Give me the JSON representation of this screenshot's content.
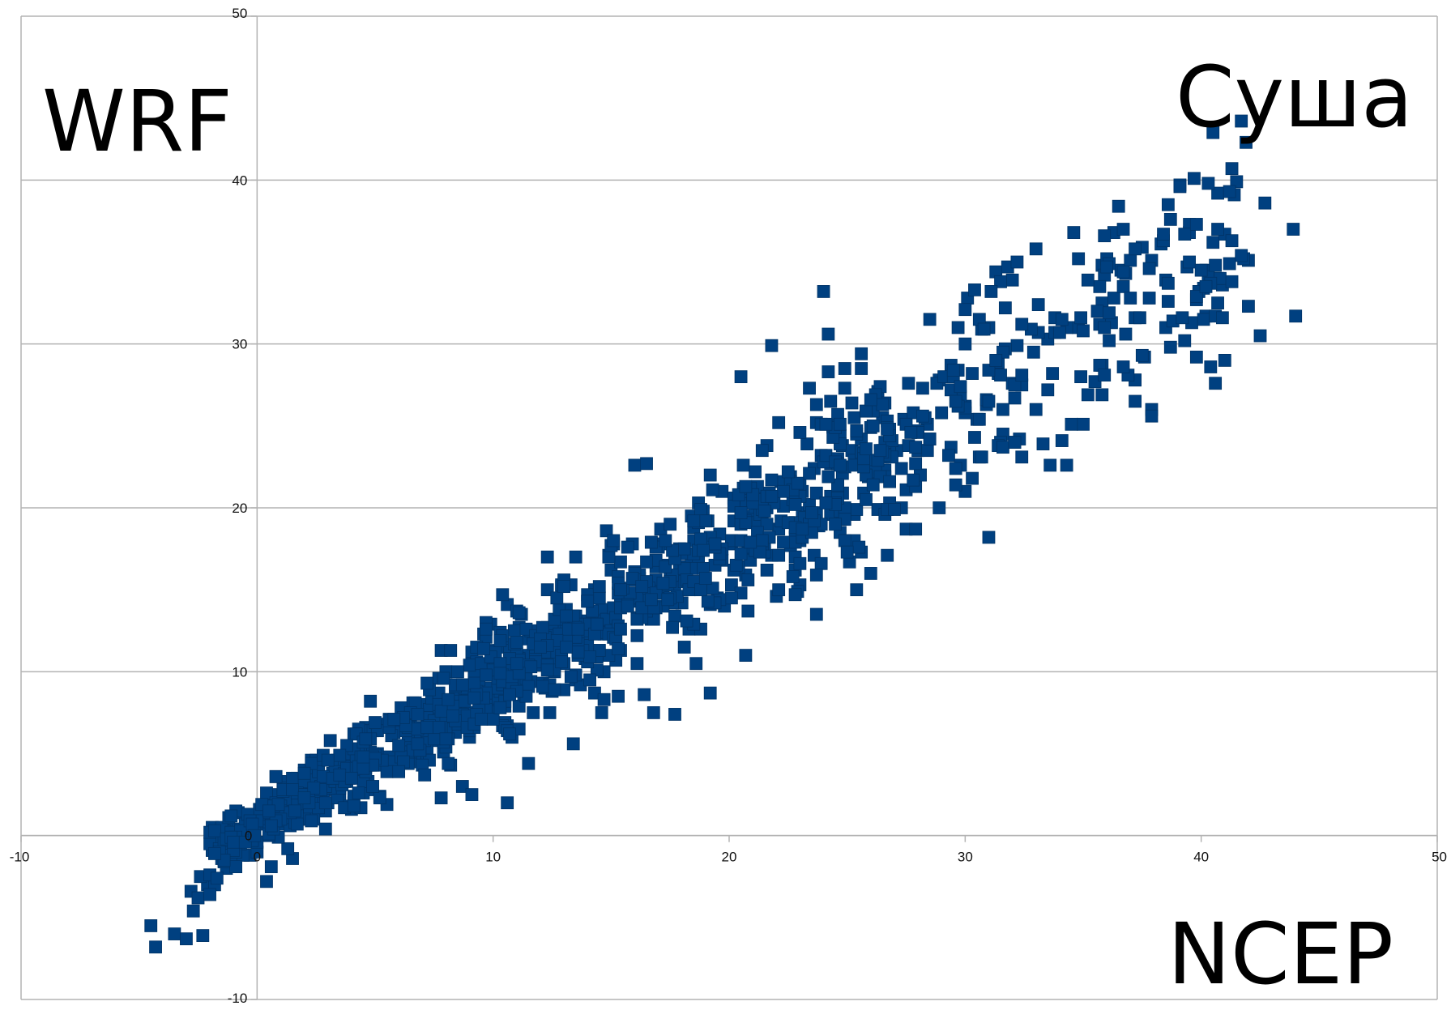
{
  "chart_data": {
    "type": "scatter",
    "title": "",
    "xlabel": "NCEP",
    "ylabel": "WRF",
    "annotation": "Суша",
    "xlim": [
      -10,
      50
    ],
    "ylim": [
      -10,
      50
    ],
    "xticks": [
      -10,
      0,
      10,
      20,
      30,
      40,
      50
    ],
    "yticks": [
      -10,
      0,
      10,
      20,
      30,
      40,
      50
    ],
    "grid": "horizontal",
    "legend": "none",
    "marker_color": "#004080",
    "marker": "square",
    "points_anchor": [
      [
        -4.5,
        -5.5
      ],
      [
        -4.3,
        -6.8
      ],
      [
        -3.5,
        -6.0
      ],
      [
        -3.0,
        -6.3
      ],
      [
        -2.8,
        -3.4
      ],
      [
        -2.5,
        -3.8
      ],
      [
        -2.7,
        -4.6
      ],
      [
        -2.3,
        -6.1
      ],
      [
        -2.1,
        -3.0
      ],
      [
        -2.4,
        -2.5
      ],
      [
        -1.8,
        -3.0
      ],
      [
        -1.5,
        -1.4
      ],
      [
        -1.3,
        -2.0
      ],
      [
        -1.0,
        -1.2
      ],
      [
        -0.8,
        -0.5
      ],
      [
        -1.2,
        0.4
      ],
      [
        -0.6,
        0.0
      ],
      [
        0.4,
        -2.8
      ],
      [
        1.5,
        -1.4
      ],
      [
        1.0,
        0.8
      ],
      [
        0.8,
        3.6
      ],
      [
        1.4,
        2.5
      ],
      [
        3.0,
        2.0
      ],
      [
        3.1,
        5.8
      ],
      [
        3.8,
        4.5
      ],
      [
        4.8,
        8.2
      ],
      [
        6.5,
        7.6
      ],
      [
        7.5,
        6.8
      ],
      [
        7.8,
        11.3
      ],
      [
        7.8,
        2.3
      ],
      [
        8.7,
        3.0
      ],
      [
        9.1,
        2.5
      ],
      [
        10.6,
        2.0
      ],
      [
        11.5,
        4.4
      ],
      [
        10.6,
        6.7
      ],
      [
        10.6,
        14.1
      ],
      [
        11.0,
        13.7
      ],
      [
        12.3,
        17.0
      ],
      [
        13.5,
        17.0
      ],
      [
        13.4,
        5.6
      ],
      [
        14.8,
        18.6
      ],
      [
        16.0,
        22.6
      ],
      [
        16.5,
        22.7
      ],
      [
        16.1,
        10.5
      ],
      [
        16.4,
        8.6
      ],
      [
        16.8,
        7.5
      ],
      [
        17.7,
        7.4
      ],
      [
        18.6,
        10.5
      ],
      [
        19.2,
        8.7
      ],
      [
        20.7,
        11.0
      ],
      [
        20.5,
        28.0
      ],
      [
        21.8,
        29.9
      ],
      [
        24.0,
        33.2
      ],
      [
        24.2,
        30.6
      ],
      [
        23.0,
        15.3
      ],
      [
        26.0,
        16.0
      ],
      [
        27.5,
        18.7
      ],
      [
        28.9,
        20.0
      ],
      [
        30.0,
        21.0
      ],
      [
        31.0,
        18.2
      ],
      [
        33.6,
        22.6
      ],
      [
        33.3,
        23.9
      ],
      [
        32.0,
        27.6
      ],
      [
        30.1,
        32.8
      ],
      [
        31.3,
        34.4
      ],
      [
        32.0,
        33.9
      ],
      [
        33.0,
        35.8
      ],
      [
        34.6,
        36.8
      ],
      [
        35.5,
        27.7
      ],
      [
        37.2,
        26.5
      ],
      [
        37.9,
        26.0
      ],
      [
        36.6,
        34.5
      ],
      [
        37.5,
        35.9
      ],
      [
        38.5,
        33.9
      ],
      [
        39.5,
        36.8
      ],
      [
        40.5,
        36.2
      ],
      [
        42.0,
        35.1
      ],
      [
        42.5,
        30.5
      ],
      [
        42.7,
        38.6
      ],
      [
        43.9,
        37.0
      ],
      [
        44.0,
        31.7
      ],
      [
        40.9,
        33.6
      ],
      [
        39.8,
        32.7
      ],
      [
        38.5,
        31.0
      ]
    ],
    "points_generated": 1250,
    "points_seed": 7,
    "trend": {
      "slope": 0.86,
      "intercept": 0.6
    }
  },
  "labels": {
    "ylabel": "WRF",
    "xlabel": "NCEP",
    "annotation": "Суша"
  }
}
